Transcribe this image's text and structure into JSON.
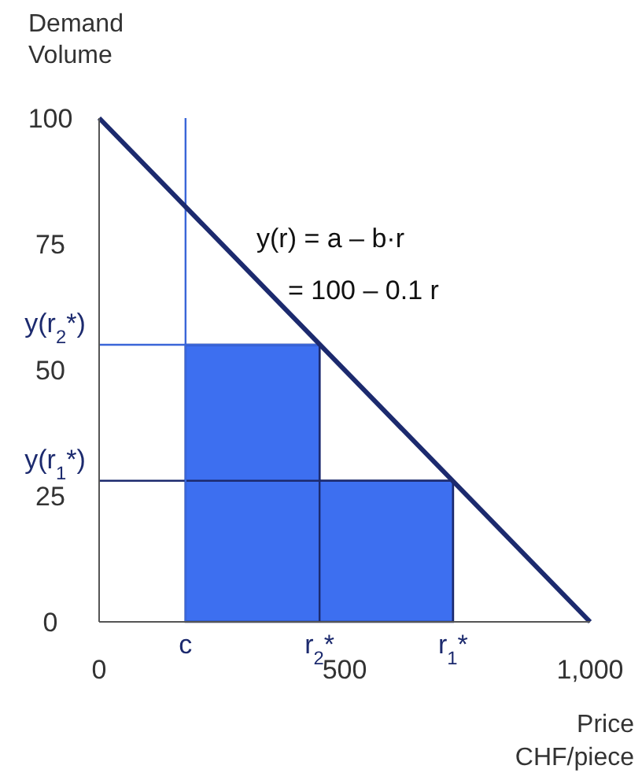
{
  "chart_data": {
    "type": "line",
    "xlabel": "Price CHF/piece",
    "ylabel": "Demand Volume",
    "xlim": [
      0,
      1000
    ],
    "ylim": [
      0,
      100
    ],
    "xticks": [
      0,
      500,
      {
        "value": 1000,
        "label": "1,000"
      }
    ],
    "yticks": [
      0,
      25,
      50,
      75,
      100
    ],
    "series": [
      {
        "type": "area",
        "color": "#3d6ff0",
        "x": [
          176,
          449,
          449,
          721
        ],
        "values": [
          55,
          55,
          28,
          28
        ]
      },
      {
        "color": "#1c2a6e",
        "x": [
          0,
          1000
        ],
        "values": [
          100,
          0
        ]
      }
    ],
    "ref_lines": [
      {
        "axis": "y",
        "value": 55,
        "label": "y(r$_{2}$*)",
        "color": "#3a66d8"
      },
      {
        "axis": "y",
        "value": 28,
        "label": "y(r$_{1}$*)",
        "color": "#1c2a6e"
      },
      {
        "axis": "x",
        "value": 176,
        "label": "c",
        "color": "#3a66d8"
      },
      {
        "axis": "x",
        "value": 449,
        "label": "r$_{2}$*",
        "color": "#1c2a6e"
      },
      {
        "axis": "x",
        "value": 721,
        "label": "r$_{1}$*",
        "color": "#1c2a6e"
      }
    ],
    "annotations": [
      "y(r) = a – b·r",
      "= 100 – 0.1 r"
    ]
  }
}
